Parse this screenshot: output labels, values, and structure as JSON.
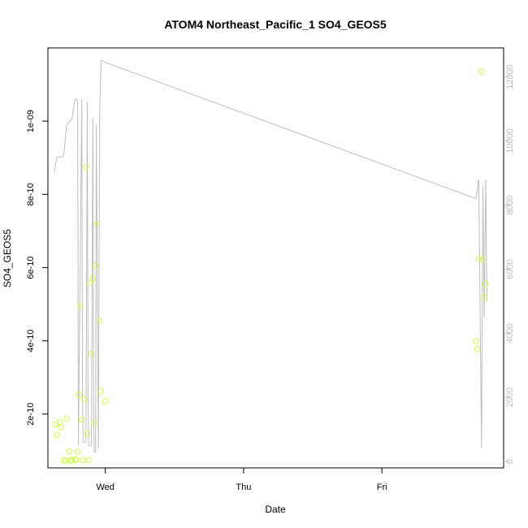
{
  "chart_data": {
    "type": "scatter",
    "title": "ATOM4 Northeast_Pacific_1 SO4_GEOS5",
    "xlabel": "Date",
    "ylabel": "SO4_GEOS5",
    "grid": false,
    "x_axis": {
      "unit": "day",
      "range": [
        -0.415,
        2.88
      ],
      "ticks": [
        {
          "value": 0,
          "label": "Wed"
        },
        {
          "value": 1,
          "label": "Thu"
        },
        {
          "value": 2,
          "label": "Fri"
        }
      ]
    },
    "y_axis": {
      "range": [
        5.3e-11,
        1.2e-09
      ],
      "ticks": [
        {
          "value": 2e-10,
          "label": "2e-10"
        },
        {
          "value": 4e-10,
          "label": "4e-10"
        },
        {
          "value": 6e-10,
          "label": "6e-10"
        },
        {
          "value": 8e-10,
          "label": "8e-10"
        },
        {
          "value": 1e-09,
          "label": "1e-09"
        }
      ]
    },
    "y2_axis": {
      "range": [
        -200,
        12900
      ],
      "ticks": [
        {
          "value": 0,
          "label": "0"
        },
        {
          "value": 2000,
          "label": "2000"
        },
        {
          "value": 4000,
          "label": "4000"
        },
        {
          "value": 6000,
          "label": "6000"
        },
        {
          "value": 8000,
          "label": "8000"
        },
        {
          "value": 10000,
          "label": "10000"
        },
        {
          "value": 12000,
          "label": "12000"
        }
      ]
    },
    "series": [
      {
        "kind": "points",
        "axis": "left",
        "color": "#ccff44",
        "x": [
          -0.36,
          -0.35,
          -0.33,
          -0.32,
          -0.3,
          -0.28,
          -0.29,
          -0.26,
          -0.25,
          -0.24,
          -0.25,
          -0.22,
          -0.21,
          -0.2,
          -0.19,
          -0.18,
          -0.17,
          -0.16,
          -0.15,
          -0.14,
          -0.13,
          -0.12,
          -0.1,
          -0.09,
          -0.08,
          -0.07,
          -0.06,
          -0.04,
          -0.03,
          2.68,
          2.69,
          2.7,
          2.72,
          2.73,
          2.74
        ],
        "y": [
          1.72e-10,
          1.43e-10,
          1.78e-10,
          1.64e-10,
          7.3e-11,
          1.88e-10,
          7.3e-11,
          9.8e-11,
          7.3e-11,
          7.3e-11,
          7.4e-11,
          7.6e-11,
          7.5e-11,
          9.8e-11,
          2.53e-10,
          4.95e-10,
          1.85e-10,
          7.4e-11,
          2.4e-10,
          8.75e-10,
          1.46e-10,
          7.4e-11,
          3.65e-10,
          5.7e-10,
          1.75e-10,
          6.05e-10,
          7.2e-10,
          4.55e-10,
          2.62e-10,
          4e-10,
          3.78e-10,
          6.25e-10,
          1.135e-09,
          6.22e-10,
          5.2e-10
        ],
        "extra_points": [
          {
            "x": -0.11,
            "y": 5.57e-10
          },
          {
            "x": 0.0,
            "y": 2.35e-10
          },
          {
            "x": 2.75,
            "y": 5.55e-10
          }
        ]
      },
      {
        "kind": "line",
        "axis": "right",
        "color": "#bebebe",
        "x": [
          -0.37,
          -0.35,
          -0.31,
          -0.3,
          -0.28,
          -0.26,
          -0.24,
          -0.22,
          -0.205,
          -0.2,
          -0.195,
          -0.17,
          -0.165,
          -0.16,
          -0.14,
          -0.13,
          -0.125,
          -0.12,
          -0.1,
          -0.09,
          -0.085,
          -0.08,
          -0.07,
          -0.065,
          -0.05,
          -0.04,
          -0.03,
          -0.02,
          0.0,
          2.68,
          2.7,
          2.72,
          2.73,
          2.74,
          2.75,
          2.76
        ],
        "y": [
          9000,
          9500,
          9500,
          9600,
          10500,
          10600,
          10700,
          11300,
          11300,
          11200,
          500,
          11300,
          2000,
          600,
          600,
          11200,
          2000,
          500,
          500,
          10700,
          2000,
          300,
          300,
          10500,
          400,
          11000,
          12500,
          12500,
          12450,
          8200,
          8800,
          400,
          8600,
          4500,
          8800,
          5000
        ]
      }
    ]
  }
}
